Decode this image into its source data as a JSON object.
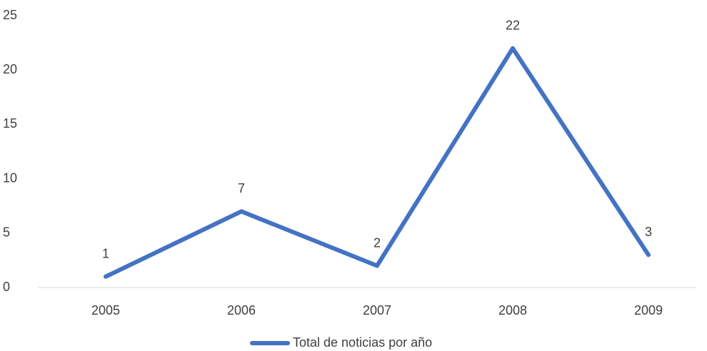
{
  "chart_data": {
    "type": "line",
    "categories": [
      "2005",
      "2006",
      "2007",
      "2008",
      "2009"
    ],
    "series": [
      {
        "name": "Total de noticias por año",
        "color": "#4472c4",
        "values": [
          1,
          7,
          2,
          22,
          3
        ]
      }
    ],
    "ylim": [
      0,
      25
    ],
    "yticks": [
      0,
      5,
      10,
      15,
      20,
      25
    ],
    "grid": false,
    "legend": "bottom"
  }
}
